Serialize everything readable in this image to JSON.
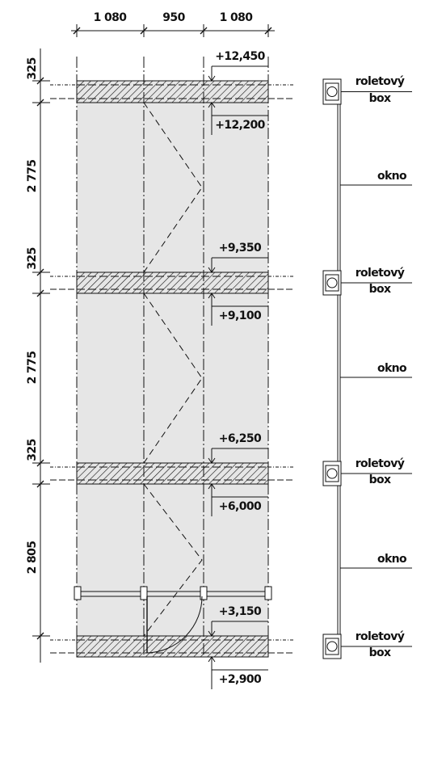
{
  "dimensions_top": [
    "1 080",
    "950",
    "1 080"
  ],
  "dimensions_left": [
    "325",
    "2 775",
    "325",
    "2 775",
    "325",
    "2 805"
  ],
  "levels": [
    "+12,450",
    "+12,200",
    "+9,350",
    "+9,100",
    "+6,250",
    "+6,000",
    "+3,150",
    "+2,900"
  ],
  "roller_boxes": [
    [
      "roletový",
      "box"
    ],
    [
      "roletový",
      "box"
    ],
    [
      "roletový",
      "box"
    ],
    [
      "roletový",
      "box"
    ]
  ],
  "windows": [
    "okno",
    "okno",
    "okno"
  ]
}
